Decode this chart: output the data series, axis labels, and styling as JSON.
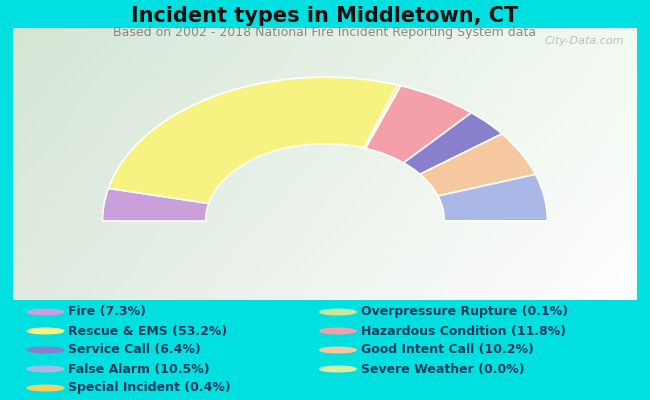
{
  "title": "Incident types in Middletown, CT",
  "subtitle": "Based on 2002 - 2018 National Fire Incident Reporting System data",
  "background_outer": "#00e0e0",
  "watermark": "City-Data.com",
  "segments": [
    {
      "label": "Fire (7.3%)",
      "value": 7.3,
      "color": "#c9a0dc"
    },
    {
      "label": "Rescue & EMS (53.2%)",
      "value": 53.2,
      "color": "#f7f380"
    },
    {
      "label": "Special Incident (0.4%)",
      "value": 0.4,
      "color": "#f7d060"
    },
    {
      "label": "Overpressure Rupture (0.1%)",
      "value": 0.1,
      "color": "#c8e6a0"
    },
    {
      "label": "Hazardous Condition (11.8%)",
      "value": 11.8,
      "color": "#f4a0a8"
    },
    {
      "label": "Service Call (6.4%)",
      "value": 6.4,
      "color": "#8880cc"
    },
    {
      "label": "Good Intent Call (10.2%)",
      "value": 10.2,
      "color": "#f5c8a0"
    },
    {
      "label": "False Alarm (10.5%)",
      "value": 10.5,
      "color": "#aab8e8"
    },
    {
      "label": "Severe Weather (0.0%)",
      "value": 0.001,
      "color": "#d8f0a0"
    }
  ],
  "legend_order": [
    {
      "label": "Fire (7.3%)",
      "color": "#c9a0dc"
    },
    {
      "label": "Rescue & EMS (53.2%)",
      "color": "#f7f380"
    },
    {
      "label": "Service Call (6.4%)",
      "color": "#8880cc"
    },
    {
      "label": "False Alarm (10.5%)",
      "color": "#aab8e8"
    },
    {
      "label": "Special Incident (0.4%)",
      "color": "#f7d060"
    },
    {
      "label": "Overpressure Rupture (0.1%)",
      "color": "#c8e6a0"
    },
    {
      "label": "Hazardous Condition (11.8%)",
      "color": "#f4a0a8"
    },
    {
      "label": "Good Intent Call (10.2%)",
      "color": "#f5c8a0"
    },
    {
      "label": "Severe Weather (0.0%)",
      "color": "#d8f0a0"
    }
  ],
  "title_fontsize": 15,
  "subtitle_fontsize": 9,
  "legend_fontsize": 9
}
